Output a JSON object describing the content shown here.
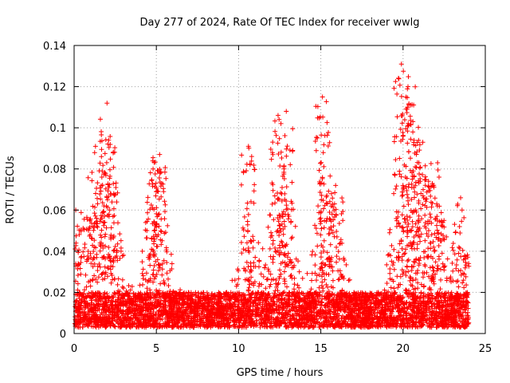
{
  "chart_data": {
    "type": "scatter",
    "title": "Day 277 of 2024, Rate Of TEC Index for receiver wwlg",
    "xlabel": "GPS time / hours",
    "ylabel": "ROTI / TECUs",
    "xlim": [
      0,
      25
    ],
    "ylim": [
      0,
      0.14
    ],
    "xticks": [
      0,
      5,
      10,
      15,
      20,
      25
    ],
    "xtick_labels": [
      "0",
      "5",
      "10",
      "15",
      "20",
      "25"
    ],
    "yticks": [
      0,
      0.02,
      0.04,
      0.06,
      0.08,
      0.1,
      0.12,
      0.14
    ],
    "ytick_labels": [
      "0",
      "0.02",
      "0.04",
      "0.06",
      "0.08",
      "0.1",
      "0.12",
      "0.14"
    ],
    "grid": true,
    "marker": "+",
    "marker_color": "#ff0000",
    "series": [
      {
        "name": "ROTI",
        "data_range_hours": [
          0,
          24
        ],
        "baseline_band": [
          0.003,
          0.02
        ],
        "notable_peaks": [
          {
            "x": 0.1,
            "y": 0.06
          },
          {
            "x": 1.3,
            "y": 0.091
          },
          {
            "x": 2.0,
            "y": 0.112
          },
          {
            "x": 2.1,
            "y": 0.094
          },
          {
            "x": 4.8,
            "y": 0.08
          },
          {
            "x": 5.2,
            "y": 0.087
          },
          {
            "x": 10.6,
            "y": 0.091
          },
          {
            "x": 12.4,
            "y": 0.106
          },
          {
            "x": 12.9,
            "y": 0.108
          },
          {
            "x": 15.1,
            "y": 0.115
          },
          {
            "x": 15.9,
            "y": 0.072
          },
          {
            "x": 19.9,
            "y": 0.131
          },
          {
            "x": 20.3,
            "y": 0.12
          },
          {
            "x": 20.6,
            "y": 0.103
          },
          {
            "x": 21.2,
            "y": 0.093
          },
          {
            "x": 22.1,
            "y": 0.083
          },
          {
            "x": 23.5,
            "y": 0.066
          }
        ]
      }
    ]
  }
}
